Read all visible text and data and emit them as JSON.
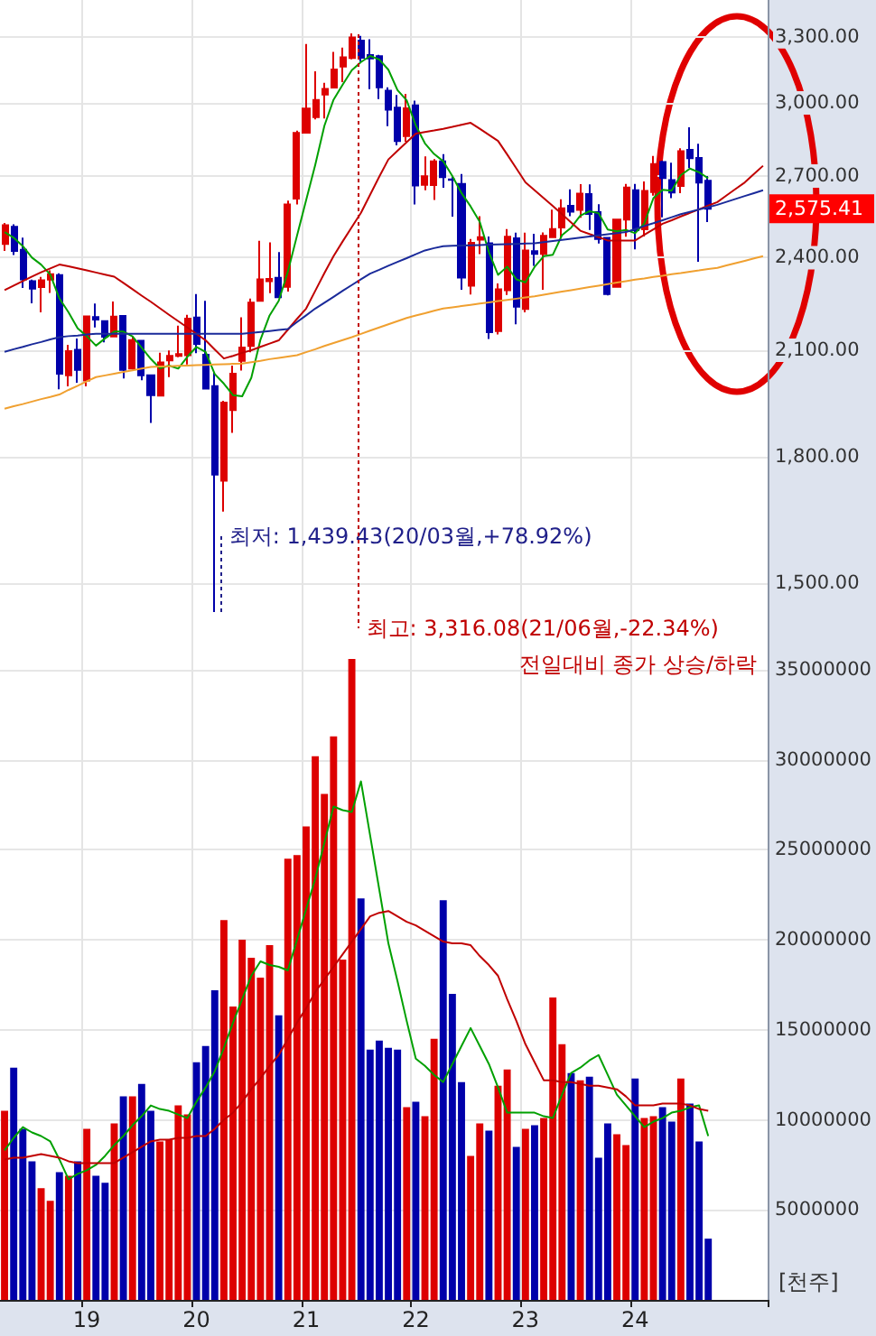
{
  "chart_data": [
    {
      "type": "candlestick",
      "categories": [
        null,
        null,
        null,
        null,
        null,
        null,
        null,
        null,
        null,
        "19",
        null,
        null,
        null,
        null,
        null,
        null,
        null,
        null,
        null,
        null,
        null,
        "20",
        null,
        null,
        null,
        null,
        null,
        null,
        null,
        null,
        null,
        null,
        null,
        "21",
        null,
        null,
        null,
        null,
        null,
        null,
        null,
        null,
        null,
        null,
        null,
        "22",
        null,
        null,
        null,
        null,
        null,
        null,
        null,
        null,
        null,
        null,
        null,
        "23",
        null,
        null,
        null,
        null,
        null,
        null,
        null,
        null,
        null,
        null,
        null,
        "24",
        null,
        null,
        null,
        null,
        null,
        null,
        null,
        null,
        null,
        null,
        null,
        null,
        null,
        null
      ],
      "tick_labels": "y",
      "log": true,
      "ylim": [
        1370,
        3480
      ],
      "yticks": [
        {
          "value": 1500,
          "label": "1,500.00"
        },
        {
          "value": 1800,
          "label": "1,800.00"
        },
        {
          "value": 2100,
          "label": "2,100.00"
        },
        {
          "value": 2400,
          "label": "2,400.00"
        },
        {
          "value": 2700,
          "label": "2,700.00"
        },
        {
          "value": 3000,
          "label": "3,000.00"
        },
        {
          "value": 3300,
          "label": "3,300.00"
        }
      ],
      "grid": true,
      "ohlc": [
        [
          2448,
          2523,
          2423,
          2515
        ],
        [
          2509,
          2518,
          2409,
          2423
        ],
        [
          2427,
          2470,
          2297,
          2326
        ],
        [
          2320,
          2325,
          2247,
          2295
        ],
        [
          2300,
          2334,
          2218,
          2323
        ],
        [
          2325,
          2356,
          2281,
          2343
        ],
        [
          2340,
          2346,
          1985,
          2030
        ],
        [
          2025,
          2116,
          1993,
          2097
        ],
        [
          2101,
          2136,
          2004,
          2041
        ],
        [
          2010,
          2205,
          1993,
          2205
        ],
        [
          2203,
          2246,
          2170,
          2195
        ],
        [
          2190,
          2191,
          2124,
          2141
        ],
        [
          2142,
          2253,
          2142,
          2204
        ],
        [
          2206,
          2206,
          2016,
          2041
        ],
        [
          2045,
          2142,
          2042,
          2131
        ],
        [
          2129,
          2131,
          2011,
          2025
        ],
        [
          2025,
          2025,
          1891,
          1968
        ],
        [
          1967,
          2092,
          1965,
          2063
        ],
        [
          2069,
          2099,
          2020,
          2083
        ],
        [
          2083,
          2176,
          2079,
          2088
        ],
        [
          2085,
          2210,
          2057,
          2198
        ],
        [
          2201,
          2277,
          2091,
          2119
        ],
        [
          2086,
          2255,
          1987,
          1987
        ],
        [
          1994,
          2034,
          1439.43,
          1755
        ],
        [
          1740,
          1952,
          1664,
          1947
        ],
        [
          1926,
          2054,
          1864,
          2030
        ],
        [
          2068,
          2202,
          2039,
          2108
        ],
        [
          2113,
          2262,
          2094,
          2249
        ],
        [
          2255,
          2459,
          2254,
          2326
        ],
        [
          2320,
          2453,
          2280,
          2327
        ],
        [
          2331,
          2419,
          2266,
          2267
        ],
        [
          2301,
          2606,
          2285,
          2591
        ],
        [
          2613,
          2882,
          2591,
          2873
        ],
        [
          2874,
          3266,
          2870,
          2976
        ],
        [
          2939,
          3140,
          2930,
          3013
        ],
        [
          3036,
          3088,
          2933,
          3061
        ],
        [
          3067,
          3229,
          3065,
          3148
        ],
        [
          3161,
          3249,
          3091,
          3204
        ],
        [
          3201,
          3316.08,
          3194,
          3297
        ],
        [
          3282,
          3305,
          3183,
          3202
        ],
        [
          3214,
          3288,
          3060,
          3199
        ],
        [
          3209,
          3215,
          3017,
          3068
        ],
        [
          3053,
          3068,
          2901,
          2971
        ],
        [
          2980,
          3034,
          2822,
          2839
        ],
        [
          2860,
          3039,
          2837,
          2977
        ],
        [
          2989,
          3010,
          2591,
          2663
        ],
        [
          2666,
          2777,
          2645,
          2699
        ],
        [
          2665,
          2766,
          2608,
          2757
        ],
        [
          2757,
          2786,
          2654,
          2695
        ],
        [
          2687,
          2698,
          2546,
          2685
        ],
        [
          2669,
          2708,
          2291,
          2332
        ],
        [
          2305,
          2465,
          2276,
          2452
        ],
        [
          2463,
          2548,
          2412,
          2472
        ],
        [
          2450,
          2474,
          2134,
          2155
        ],
        [
          2159,
          2312,
          2148,
          2293
        ],
        [
          2290,
          2501,
          2274,
          2473
        ],
        [
          2468,
          2488,
          2180,
          2236
        ],
        [
          2229,
          2488,
          2218,
          2425
        ],
        [
          2422,
          2484,
          2372,
          2413
        ],
        [
          2413,
          2489,
          2291,
          2477
        ],
        [
          2472,
          2572,
          2470,
          2501
        ],
        [
          2507,
          2611,
          2467,
          2577
        ],
        [
          2586,
          2648,
          2548,
          2564
        ],
        [
          2571,
          2668,
          2542,
          2632
        ],
        [
          2630,
          2667,
          2498,
          2556
        ],
        [
          2563,
          2592,
          2449,
          2465
        ],
        [
          2469,
          2470,
          2273,
          2277
        ],
        [
          2301,
          2535,
          2300,
          2535
        ],
        [
          2535,
          2669,
          2473,
          2655
        ],
        [
          2645,
          2669,
          2429,
          2497
        ],
        [
          2500,
          2679,
          2474,
          2642
        ],
        [
          2638,
          2779,
          2624,
          2747
        ],
        [
          2755,
          2760,
          2544,
          2692
        ],
        [
          2684,
          2752,
          2615,
          2636
        ],
        [
          2661,
          2810,
          2634,
          2798
        ],
        [
          2804,
          2896,
          2731,
          2770
        ],
        [
          2771,
          2828,
          2386,
          2674
        ],
        [
          2681,
          2700,
          2526,
          2575.41
        ],
        null,
        null,
        null,
        null,
        null,
        null
      ],
      "colors": [
        "#dd0000",
        "#0000aa",
        "#0000aa",
        "#0000aa",
        "#dd0000",
        "#dd0000",
        "#0000aa",
        "#dd0000",
        "#0000aa",
        "#dd0000",
        "#0000aa",
        "#0000aa",
        "#dd0000",
        "#0000aa",
        "#dd0000",
        "#0000aa",
        "#0000aa",
        "#dd0000",
        "#dd0000",
        "#dd0000",
        "#dd0000",
        "#0000aa",
        "#0000aa",
        "#0000aa",
        "#dd0000",
        "#dd0000",
        "#dd0000",
        "#dd0000",
        "#dd0000",
        "#dd0000",
        "#0000aa",
        "#dd0000",
        "#dd0000",
        "#dd0000",
        "#dd0000",
        "#dd0000",
        "#dd0000",
        "#dd0000",
        "#dd0000",
        "#0000aa",
        "#0000aa",
        "#0000aa",
        "#0000aa",
        "#0000aa",
        "#dd0000",
        "#0000aa",
        "#dd0000",
        "#dd0000",
        "#0000aa",
        "#0000aa",
        "#0000aa",
        "#dd0000",
        "#dd0000",
        "#0000aa",
        "#dd0000",
        "#dd0000",
        "#0000aa",
        "#dd0000",
        "#0000aa",
        "#dd0000",
        "#dd0000",
        "#dd0000",
        "#0000aa",
        "#dd0000",
        "#0000aa",
        "#0000aa",
        "#0000aa",
        "#dd0000",
        "#dd0000",
        "#0000aa",
        "#dd0000",
        "#dd0000",
        "#0000aa",
        "#0000aa",
        "#dd0000",
        "#0000aa",
        "#0000aa",
        "#0000aa",
        null,
        null,
        null,
        null,
        null,
        null
      ],
      "series": [
        {
          "type": "line",
          "color": "#00a000",
          "values": [
            2490,
            2470,
            2440,
            2400,
            2376,
            2342,
            2263,
            2218,
            2167,
            2143,
            2114,
            2136,
            2157,
            2157,
            2142,
            2108,
            2074,
            2046,
            2054,
            2045,
            2080,
            2110,
            2095,
            2029,
            2001,
            1968,
            1965,
            2018,
            2132,
            2208,
            2255,
            2352,
            2477,
            2607,
            2744,
            2903,
            3014,
            3080,
            3145,
            3182,
            3210,
            3194,
            3147,
            3056,
            3011,
            2904,
            2830,
            2787,
            2758,
            2700,
            2634,
            2584,
            2527,
            2419,
            2341,
            2369,
            2326,
            2316,
            2368,
            2405,
            2410,
            2479,
            2506,
            2550,
            2566,
            2559,
            2499,
            2493,
            2498,
            2486,
            2521,
            2615,
            2647,
            2643,
            2703,
            2729,
            2714,
            2691,
            null,
            null,
            null,
            null,
            null,
            null
          ]
        },
        {
          "type": "line",
          "color": "#c00000",
          "values": [
            2290,
            2305,
            2320,
            2335,
            2350,
            2363,
            2376,
            2370,
            2363,
            2356,
            2349,
            2342,
            2335,
            2314,
            2293,
            2272,
            2252,
            2231,
            2210,
            2190,
            2170,
            2150,
            2130,
            2102,
            2075,
            2083,
            2092,
            2100,
            2110,
            2120,
            2130,
            2163,
            2197,
            2230,
            2288,
            2347,
            2405,
            2457,
            2508,
            2560,
            2628,
            2697,
            2765,
            2800,
            2835,
            2870,
            2877,
            2883,
            2890,
            2898,
            2907,
            2915,
            2890,
            2865,
            2840,
            2785,
            2730,
            2675,
            2645,
            2615,
            2585,
            2555,
            2525,
            2495,
            2483,
            2472,
            2460,
            2460,
            2460,
            2460,
            2480,
            2500,
            2520,
            2533,
            2547,
            2560,
            2573,
            2587,
            2600,
            2625,
            2650,
            2675,
            2708,
            2740
          ]
        },
        {
          "type": "line",
          "color": "#1a2a9a",
          "values": [
            2095,
            2103,
            2110,
            2118,
            2125,
            2133,
            2140,
            2143,
            2145,
            2148,
            2150,
            2150,
            2150,
            2150,
            2150,
            2150,
            2150,
            2150,
            2150,
            2150,
            2150,
            2150,
            2150,
            2150,
            2150,
            2150,
            2150,
            2153,
            2156,
            2159,
            2162,
            2165,
            2187,
            2208,
            2230,
            2249,
            2268,
            2288,
            2307,
            2326,
            2345,
            2358,
            2372,
            2385,
            2398,
            2412,
            2425,
            2433,
            2440,
            2441,
            2442,
            2443,
            2444,
            2445,
            2446,
            2447,
            2448,
            2449,
            2450,
            2454,
            2458,
            2462,
            2466,
            2470,
            2474,
            2478,
            2482,
            2486,
            2490,
            2501,
            2512,
            2522,
            2533,
            2544,
            2555,
            2564,
            2573,
            2581,
            2590,
            2601,
            2612,
            2623,
            2634,
            2645
          ]
        },
        {
          "type": "line",
          "color": "#f0a030",
          "values": [
            1930,
            1937,
            1943,
            1950,
            1957,
            1963,
            1970,
            1983,
            1995,
            2008,
            2020,
            2025,
            2030,
            2035,
            2040,
            2045,
            2050,
            2051,
            2052,
            2053,
            2054,
            2055,
            2056,
            2057,
            2058,
            2059,
            2060,
            2064,
            2068,
            2073,
            2077,
            2081,
            2085,
            2094,
            2103,
            2113,
            2122,
            2131,
            2140,
            2150,
            2160,
            2170,
            2180,
            2190,
            2200,
            2208,
            2215,
            2223,
            2230,
            2234,
            2238,
            2242,
            2246,
            2250,
            2254,
            2258,
            2262,
            2266,
            2270,
            2275,
            2280,
            2285,
            2290,
            2295,
            2300,
            2305,
            2310,
            2315,
            2320,
            2325,
            2329,
            2334,
            2338,
            2343,
            2347,
            2352,
            2356,
            2361,
            2365,
            2373,
            2381,
            2389,
            2397,
            2405
          ]
        }
      ],
      "annotations": [
        "최저: 1,439.43(20/03월,+78.92%)",
        "최고: 3,316.08(21/06월,-22.34%)",
        "2,575.41"
      ]
    },
    {
      "type": "bar",
      "categories": [
        null,
        null,
        null,
        null,
        null,
        null,
        null,
        null,
        null,
        "19",
        null,
        null,
        null,
        null,
        null,
        null,
        null,
        null,
        null,
        null,
        null,
        "20",
        null,
        null,
        null,
        null,
        null,
        null,
        null,
        null,
        null,
        null,
        null,
        "21",
        null,
        null,
        null,
        null,
        null,
        null,
        null,
        null,
        null,
        null,
        null,
        "22",
        null,
        null,
        null,
        null,
        null,
        null,
        null,
        null,
        null,
        null,
        null,
        "23",
        null,
        null,
        null,
        null,
        null,
        null,
        null,
        null,
        null,
        null,
        null,
        "24",
        null,
        null,
        null,
        null,
        null,
        null,
        null,
        null,
        null,
        null,
        null,
        null,
        null,
        null
      ],
      "ylim": [
        0,
        36300000
      ],
      "yticks": [
        5000000,
        10000000,
        15000000,
        20000000,
        25000000,
        30000000,
        35000000
      ],
      "ylabel": "[천주]",
      "grid": true,
      "series": [
        {
          "values": [
            10500000,
            12900000,
            9500000,
            7700000,
            6200000,
            5500000,
            7100000,
            6900000,
            7700000,
            9500000,
            6900000,
            6500000,
            9800000,
            11300000,
            11300000,
            12000000,
            10500000,
            8800000,
            8900000,
            10800000,
            10300000,
            13200000,
            14100000,
            17200000,
            21100000,
            16300000,
            20000000,
            19000000,
            17900000,
            19700000,
            15800000,
            24500000,
            24700000,
            26300000,
            30200000,
            28100000,
            31300000,
            18900000,
            35600000,
            22300000,
            13900000,
            14400000,
            14000000,
            13900000,
            10700000,
            11000000,
            10200000,
            14500000,
            22200000,
            17000000,
            12100000,
            8000000,
            9800000,
            9400000,
            11900000,
            12800000,
            8500000,
            9500000,
            9700000,
            10100000,
            16800000,
            14200000,
            12600000,
            12200000,
            12400000,
            7900000,
            9800000,
            9200000,
            8600000,
            12300000,
            10100000,
            10200000,
            10700000,
            9900000,
            12300000,
            10900000,
            8800000,
            3400000,
            null,
            null,
            null,
            null,
            null,
            null
          ],
          "colors": [
            "#dd0000",
            "#0000aa",
            "#0000aa",
            "#0000aa",
            "#dd0000",
            "#dd0000",
            "#0000aa",
            "#dd0000",
            "#0000aa",
            "#dd0000",
            "#0000aa",
            "#0000aa",
            "#dd0000",
            "#0000aa",
            "#dd0000",
            "#0000aa",
            "#0000aa",
            "#dd0000",
            "#dd0000",
            "#dd0000",
            "#dd0000",
            "#0000aa",
            "#0000aa",
            "#0000aa",
            "#dd0000",
            "#dd0000",
            "#dd0000",
            "#dd0000",
            "#dd0000",
            "#dd0000",
            "#0000aa",
            "#dd0000",
            "#dd0000",
            "#dd0000",
            "#dd0000",
            "#dd0000",
            "#dd0000",
            "#dd0000",
            "#dd0000",
            "#0000aa",
            "#0000aa",
            "#0000aa",
            "#0000aa",
            "#0000aa",
            "#dd0000",
            "#0000aa",
            "#dd0000",
            "#dd0000",
            "#0000aa",
            "#0000aa",
            "#0000aa",
            "#dd0000",
            "#dd0000",
            "#0000aa",
            "#dd0000",
            "#dd0000",
            "#0000aa",
            "#dd0000",
            "#0000aa",
            "#dd0000",
            "#dd0000",
            "#dd0000",
            "#0000aa",
            "#dd0000",
            "#0000aa",
            "#0000aa",
            "#0000aa",
            "#dd0000",
            "#dd0000",
            "#0000aa",
            "#dd0000",
            "#dd0000",
            "#0000aa",
            "#0000aa",
            "#dd0000",
            "#0000aa",
            "#0000aa",
            "#0000aa",
            null,
            null,
            null,
            null,
            null,
            null
          ]
        },
        {
          "type": "line",
          "color": "#00a000",
          "values": [
            8300000,
            9000000,
            9600000,
            9300000,
            9100000,
            8800000,
            7800000,
            6700000,
            7000000,
            7200000,
            7500000,
            8000000,
            8600000,
            9100000,
            9700000,
            10200000,
            10800000,
            10600000,
            10500000,
            10300000,
            10100000,
            11000000,
            11800000,
            12700000,
            14000000,
            15400000,
            16700000,
            18000000,
            18800000,
            18600000,
            18500000,
            18300000,
            20000000,
            21700000,
            23400000,
            25400000,
            27400000,
            27200000,
            27100000,
            28800000,
            25800000,
            22800000,
            19800000,
            17700000,
            15500000,
            13400000,
            13000000,
            12500000,
            12100000,
            13100000,
            14100000,
            15100000,
            14100000,
            13100000,
            11800000,
            10400000,
            10400000,
            10400000,
            10400000,
            10200000,
            10100000,
            11400000,
            12600000,
            12900000,
            13300000,
            13600000,
            12500000,
            11400000,
            10800000,
            10200000,
            9600000,
            9900000,
            10100000,
            10400000,
            10500000,
            10700000,
            10800000,
            9100000,
            null,
            null,
            null,
            null,
            null,
            null
          ]
        },
        {
          "type": "line",
          "color": "#c00000",
          "values": [
            7800000,
            7900000,
            7900000,
            8000000,
            8100000,
            8000000,
            7900000,
            7700000,
            7600000,
            7600000,
            7600000,
            7600000,
            7600000,
            7900000,
            8200000,
            8500000,
            8800000,
            8900000,
            8900000,
            9000000,
            9000000,
            9100000,
            9100000,
            9500000,
            10000000,
            10400000,
            11000000,
            11700000,
            12300000,
            13000000,
            13600000,
            14500000,
            15400000,
            16200000,
            17100000,
            17800000,
            18500000,
            19200000,
            19900000,
            20600000,
            21300000,
            21500000,
            21600000,
            21300000,
            21000000,
            20800000,
            20500000,
            20200000,
            19900000,
            19800000,
            19800000,
            19700000,
            19100000,
            18600000,
            18000000,
            16700000,
            15500000,
            14200000,
            13200000,
            12200000,
            12200000,
            12100000,
            12100000,
            12000000,
            11900000,
            11900000,
            11800000,
            11700000,
            11300000,
            10800000,
            10800000,
            10800000,
            10900000,
            10900000,
            10900000,
            10800000,
            10600000,
            10500000,
            null,
            null,
            null,
            null,
            null,
            null
          ]
        }
      ],
      "annotations": [
        "전일대비 종가 상승/하락"
      ]
    }
  ]
}
